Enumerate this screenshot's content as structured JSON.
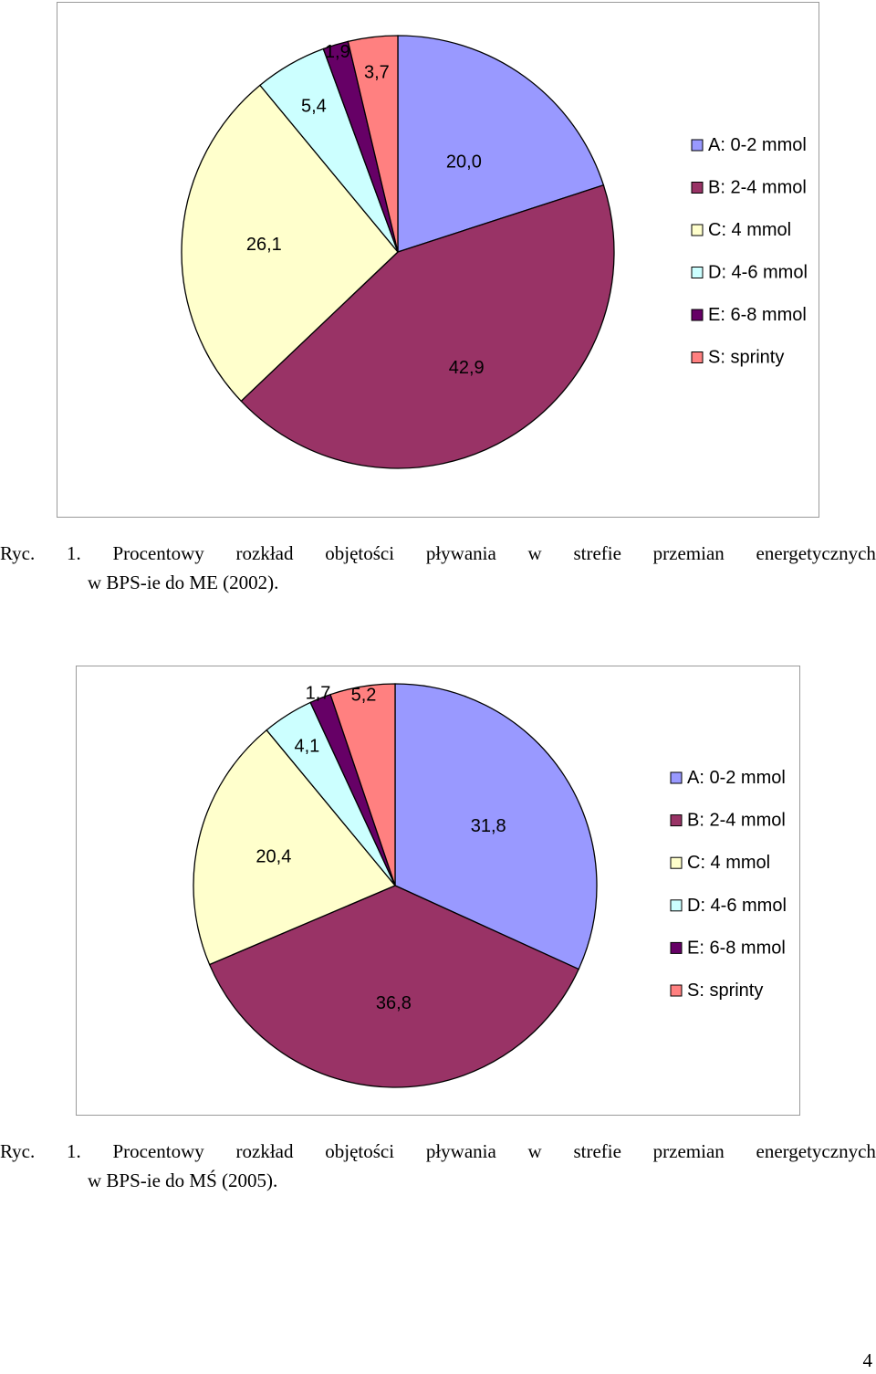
{
  "chart_data": [
    {
      "type": "pie",
      "categories": [
        "A: 0-2 mmol",
        "B: 2-4 mmol",
        "C: 4 mmol",
        "D: 4-6 mmol",
        "E: 6-8 mmol",
        "S: sprinty"
      ],
      "values": [
        20.0,
        42.9,
        26.1,
        5.4,
        1.9,
        3.7
      ],
      "data_labels": [
        "20,0",
        "42,9",
        "26,1",
        "5,4",
        "1,9",
        "3,7"
      ],
      "colors": [
        "#9999ff",
        "#993366",
        "#ffffcc",
        "#ccffff",
        "#660066",
        "#ff8080"
      ],
      "legend_position": "right",
      "title": ""
    },
    {
      "type": "pie",
      "categories": [
        "A: 0-2 mmol",
        "B: 2-4 mmol",
        "C: 4 mmol",
        "D: 4-6 mmol",
        "E: 6-8 mmol",
        "S: sprinty"
      ],
      "values": [
        31.8,
        36.8,
        20.4,
        4.1,
        1.7,
        5.2
      ],
      "data_labels": [
        "31,8",
        "36,8",
        "20,4",
        "4,1",
        "1,7",
        "5,2"
      ],
      "colors": [
        "#9999ff",
        "#993366",
        "#ffffcc",
        "#ccffff",
        "#660066",
        "#ff8080"
      ],
      "legend_position": "right",
      "title": ""
    }
  ],
  "captions": [
    {
      "words": [
        "Ryc.",
        "1.",
        "Procentowy",
        "rozkład",
        "objętości",
        "pływania",
        "w",
        "strefie",
        "przemian",
        "energetycznych"
      ],
      "line2": "w BPS-ie do ME (2002)."
    },
    {
      "words": [
        "Ryc.",
        "1.",
        "Procentowy",
        "rozkład",
        "objętości",
        "pływania",
        "w",
        "strefie",
        "przemian",
        "energetycznych"
      ],
      "line2": "w BPS-ie do MŚ (2005)."
    }
  ],
  "page_number": "4"
}
